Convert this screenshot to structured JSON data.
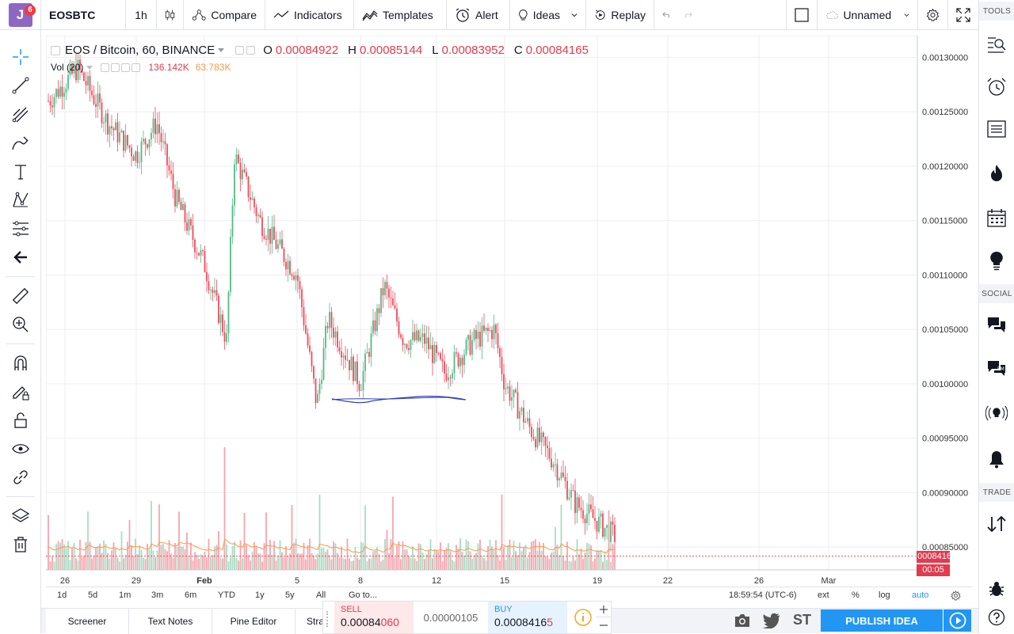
{
  "app": {
    "logo_letter": "J",
    "notifications": "6"
  },
  "toolbar": {
    "symbol": "EOSBTC",
    "interval": "1h",
    "compare": "Compare",
    "indicators": "Indicators",
    "templates": "Templates",
    "alert": "Alert",
    "ideas": "Ideas",
    "replay": "Replay",
    "layout_name": "Unnamed"
  },
  "legend": {
    "title": "EOS / Bitcoin, 60, BINANCE",
    "o_label": "O",
    "o": "0.00084922",
    "h_label": "H",
    "h": "0.00085144",
    "l_label": "L",
    "l": "0.00083952",
    "c_label": "C",
    "c": "0.00084165",
    "vol_label": "Vol (20)",
    "vol1": "136.142K",
    "vol2": "63.783K"
  },
  "colors": {
    "up": "#53b987",
    "down": "#eb4d5c",
    "volume_up": "#a8dcc3",
    "volume_down": "#f4a6ae",
    "ma": "#f79a4a",
    "drawing": "#2f3fba",
    "accent": "#2196f3"
  },
  "chart_data": {
    "type": "candlestick",
    "symbol": "EOS / Bitcoin",
    "interval": "60",
    "exchange": "BINANCE",
    "price_axis_ticks": [
      "0.00130000",
      "0.00125000",
      "0.00120000",
      "0.00115000",
      "0.00110000",
      "0.00105000",
      "0.00100000",
      "0.00095000",
      "0.00090000",
      "0.00085000"
    ],
    "ylim": [
      0.000829,
      0.00132
    ],
    "time_axis_ticks": [
      "26",
      "29",
      "Feb",
      "5",
      "8",
      "12",
      "15",
      "19",
      "22",
      "26",
      "Mar"
    ],
    "last_price": "0.00084165",
    "countdown": "00:05",
    "price_path": [
      [
        "26",
        0.00126
      ],
      [
        "27",
        0.00129
      ],
      [
        "28",
        0.00124
      ],
      [
        "29",
        0.00121
      ],
      [
        "30",
        0.00124
      ],
      [
        "31",
        0.00117
      ],
      [
        "Feb",
        0.00111
      ],
      [
        "2",
        0.00104
      ],
      [
        "3",
        0.00121
      ],
      [
        "4",
        0.00115
      ],
      [
        "5",
        0.0011
      ],
      [
        "6",
        0.00098
      ],
      [
        "7",
        0.00106
      ],
      [
        "8",
        0.001
      ],
      [
        "9",
        0.00109
      ],
      [
        "10",
        0.00104
      ],
      [
        "11",
        0.00104
      ],
      [
        "12",
        0.00101
      ],
      [
        "13",
        0.00104
      ],
      [
        "14",
        0.00105
      ],
      [
        "15",
        0.001
      ],
      [
        "16",
        0.00096
      ],
      [
        "17",
        0.00093
      ],
      [
        "18",
        0.00089
      ],
      [
        "19",
        0.00086
      ]
    ],
    "grid": true
  },
  "range": {
    "items": [
      "1d",
      "5d",
      "1m",
      "3m",
      "6m",
      "YTD",
      "1y",
      "5y",
      "All"
    ],
    "goto": "Go to...",
    "time": "18:59:54 (UTC-6)",
    "ext": "ext",
    "pct": "%",
    "log": "log",
    "auto": "auto"
  },
  "bottom": {
    "tabs": [
      "Screener",
      "Text Notes",
      "Pine Editor",
      "Stra"
    ],
    "sell_label": "SELL",
    "sell_price_main": "0.00084",
    "sell_price_tail": "060",
    "spread": "0.00000105",
    "buy_label": "BUY",
    "buy_price_main": "0.0008416",
    "buy_price_tail": "5",
    "publish": "PUBLISH IDEA",
    "st": "ST"
  },
  "rightbar": {
    "tools": "TOOLS",
    "social": "SOCIAL",
    "trade": "TRADE"
  }
}
